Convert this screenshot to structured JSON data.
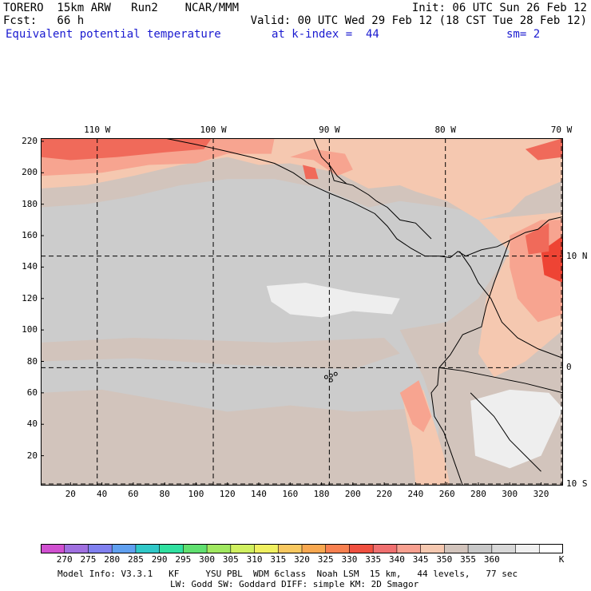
{
  "header": {
    "line1_left": "TORERO  15km ARW   Run2    NCAR/MMM",
    "line1_right": "Init: 06 UTC Sun 26 Feb 12",
    "line2_left": "Fcst:   66 h",
    "line2_right": "Valid: 00 UTC Wed 29 Feb 12 (18 CST Tue 28 Feb 12)",
    "line3_field": "Equivalent potential temperature",
    "line3_level": "at k-index =  44",
    "line3_smooth": "sm= 2"
  },
  "map": {
    "x_ticks": [
      "20",
      "40",
      "60",
      "80",
      "100",
      "120",
      "140",
      "160",
      "180",
      "200",
      "220",
      "240",
      "260",
      "280",
      "300",
      "320"
    ],
    "x_tick_values": [
      20,
      40,
      60,
      80,
      100,
      120,
      140,
      160,
      180,
      200,
      220,
      240,
      260,
      280,
      300,
      320
    ],
    "y_ticks": [
      "20",
      "40",
      "60",
      "80",
      "100",
      "120",
      "140",
      "160",
      "180",
      "200",
      "220"
    ],
    "y_tick_values": [
      20,
      40,
      60,
      80,
      100,
      120,
      140,
      160,
      180,
      200,
      220
    ],
    "x_range": [
      1,
      334
    ],
    "y_range": [
      1,
      222
    ],
    "lon_labels": [
      "110 W",
      "100 W",
      "90 W",
      "80 W",
      "70 W"
    ],
    "lon_grid_x": [
      37,
      111,
      185,
      259,
      333
    ],
    "lat_labels": [
      "10 N",
      "0",
      "10 S"
    ],
    "lat_grid_y": [
      147,
      76,
      2
    ],
    "colors": {
      "grey_ocean": "#cccccc",
      "warm_grey": "#d2c4bc",
      "light_salmon": "#f5c8b0",
      "salmon": "#f7a490",
      "red_orange": "#f06a5a",
      "red": "#ee4434",
      "white_gray": "#eeeeee"
    }
  },
  "colorbar": {
    "colors": [
      "#d050d0",
      "#a070e0",
      "#8080f0",
      "#60a0f0",
      "#30c8c8",
      "#30e0a0",
      "#60e070",
      "#a0e860",
      "#d0f060",
      "#f0f060",
      "#f8c860",
      "#f8a850",
      "#f88050",
      "#f05040",
      "#f07070",
      "#f8a090",
      "#f5c8b0",
      "#d2c4bc",
      "#c8c8c8",
      "#d8d8d8",
      "#f0f0f0",
      "#ffffff"
    ],
    "labels": [
      "270",
      "275",
      "280",
      "285",
      "290",
      "295",
      "300",
      "305",
      "310",
      "315",
      "320",
      "325",
      "330",
      "335",
      "340",
      "345",
      "350",
      "355",
      "360"
    ],
    "unit": "K"
  },
  "footer": {
    "line1": "Model Info: V3.3.1   KF     YSU PBL  WDM 6class  Noah LSM  15 km,   44 levels,   77 sec",
    "line2": "LW: Godd SW: Goddard DIFF: simple KM: 2D Smagor"
  }
}
